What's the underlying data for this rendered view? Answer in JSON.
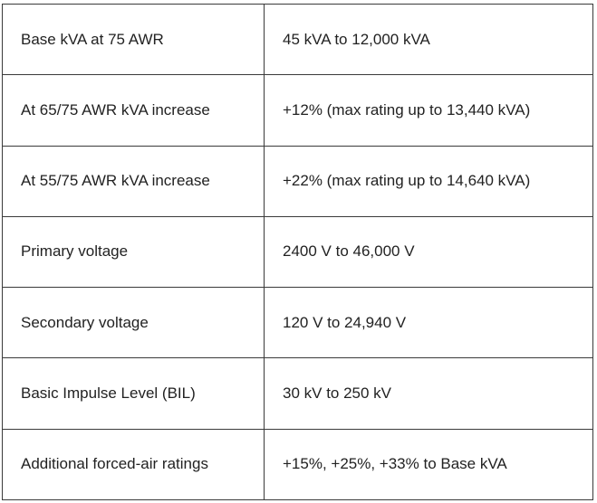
{
  "table": {
    "rows": [
      {
        "label": "Base kVA at 75 AWR",
        "value": "45 kVA to 12,000 kVA"
      },
      {
        "label": "At 65/75 AWR kVA increase",
        "value": "+12% (max rating up to 13,440 kVA)"
      },
      {
        "label": "At 55/75 AWR kVA increase",
        "value": "+22% (max rating up to 14,640 kVA)"
      },
      {
        "label": "Primary voltage",
        "value": "2400 V to 46,000 V"
      },
      {
        "label": "Secondary voltage",
        "value": "120 V to 24,940 V"
      },
      {
        "label": "Basic Impulse Level (BIL)",
        "value": "30 kV to 250 kV"
      },
      {
        "label": "Additional forced-air ratings",
        "value": "+15%, +25%, +33% to Base kVA"
      }
    ]
  }
}
